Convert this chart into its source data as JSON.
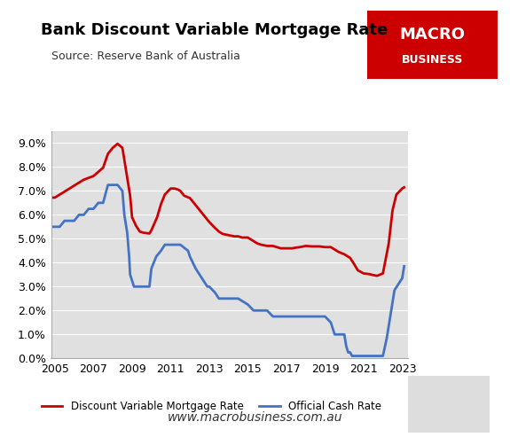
{
  "title": "Bank Discount Variable Mortgage Rate",
  "source": "Source: Reserve Bank of Australia",
  "website": "www.macrobusiness.com.au",
  "outer_background": "#ffffff",
  "plot_bg": "#e0e0e0",
  "red_color": "#cc0000",
  "blue_color": "#4472c4",
  "logo_bg": "#cc0000",
  "logo_text1": "MACRO",
  "logo_text2": "BUSINESS",
  "ylim": [
    0.0,
    0.095
  ],
  "yticks": [
    0.0,
    0.01,
    0.02,
    0.03,
    0.04,
    0.05,
    0.06,
    0.07,
    0.08,
    0.09
  ],
  "ytick_labels": [
    "0.0%",
    "1.0%",
    "2.0%",
    "3.0%",
    "4.0%",
    "5.0%",
    "6.0%",
    "7.0%",
    "8.0%",
    "9.0%"
  ],
  "xlim": [
    2004.8,
    2023.3
  ],
  "xtick_labels": [
    "2005",
    "2007",
    "2009",
    "2011",
    "2013",
    "2015",
    "2017",
    "2019",
    "2021",
    "2023"
  ],
  "xtick_values": [
    2005,
    2007,
    2009,
    2011,
    2013,
    2015,
    2017,
    2019,
    2021,
    2023
  ],
  "legend_label_red": "Discount Variable Mortgage Rate",
  "legend_label_blue": "Official Cash Rate",
  "mortgage_rate": {
    "dates": [
      2004.9,
      2005.0,
      2005.5,
      2006.0,
      2006.5,
      2007.0,
      2007.5,
      2007.75,
      2008.0,
      2008.25,
      2008.5,
      2008.6,
      2008.75,
      2008.9,
      2009.0,
      2009.2,
      2009.4,
      2009.6,
      2009.9,
      2010.0,
      2010.3,
      2010.5,
      2010.7,
      2011.0,
      2011.2,
      2011.4,
      2011.5,
      2011.7,
      2012.0,
      2012.3,
      2012.5,
      2012.7,
      2012.9,
      2013.0,
      2013.3,
      2013.5,
      2013.7,
      2014.0,
      2014.3,
      2014.5,
      2014.7,
      2015.0,
      2015.3,
      2015.5,
      2015.7,
      2016.0,
      2016.3,
      2016.5,
      2016.7,
      2017.0,
      2017.3,
      2017.5,
      2017.7,
      2018.0,
      2018.3,
      2018.5,
      2018.7,
      2019.0,
      2019.3,
      2019.5,
      2019.7,
      2020.0,
      2020.3,
      2020.5,
      2020.7,
      2021.0,
      2021.3,
      2021.5,
      2021.7,
      2022.0,
      2022.3,
      2022.5,
      2022.7,
      2023.0,
      2023.1
    ],
    "values": [
      0.0672,
      0.0672,
      0.0697,
      0.0722,
      0.0747,
      0.0762,
      0.0797,
      0.0855,
      0.088,
      0.0897,
      0.088,
      0.083,
      0.0755,
      0.068,
      0.059,
      0.0555,
      0.053,
      0.0525,
      0.0522,
      0.0535,
      0.059,
      0.0645,
      0.0685,
      0.071,
      0.071,
      0.0705,
      0.07,
      0.068,
      0.067,
      0.064,
      0.062,
      0.06,
      0.058,
      0.057,
      0.0545,
      0.053,
      0.052,
      0.0515,
      0.051,
      0.051,
      0.0505,
      0.0505,
      0.049,
      0.048,
      0.0475,
      0.047,
      0.047,
      0.0465,
      0.046,
      0.046,
      0.046,
      0.0463,
      0.0465,
      0.047,
      0.0468,
      0.0468,
      0.0468,
      0.0465,
      0.0465,
      0.0455,
      0.0445,
      0.0435,
      0.042,
      0.0395,
      0.0368,
      0.0355,
      0.0352,
      0.0348,
      0.0345,
      0.0355,
      0.048,
      0.062,
      0.0685,
      0.071,
      0.0715
    ]
  },
  "cash_rate": {
    "dates": [
      2004.9,
      2005.0,
      2005.25,
      2005.5,
      2005.75,
      2006.0,
      2006.25,
      2006.5,
      2006.75,
      2007.0,
      2007.25,
      2007.5,
      2007.75,
      2008.0,
      2008.1,
      2008.25,
      2008.5,
      2008.6,
      2008.75,
      2008.85,
      2008.9,
      2009.0,
      2009.1,
      2009.2,
      2009.4,
      2009.6,
      2009.9,
      2010.0,
      2010.25,
      2010.5,
      2010.7,
      2010.9,
      2011.0,
      2011.5,
      2011.9,
      2012.0,
      2012.3,
      2012.5,
      2012.7,
      2012.9,
      2013.0,
      2013.3,
      2013.5,
      2013.7,
      2014.0,
      2014.5,
      2015.0,
      2015.3,
      2015.5,
      2015.7,
      2016.0,
      2016.3,
      2016.5,
      2016.7,
      2017.0,
      2017.5,
      2018.0,
      2018.5,
      2019.0,
      2019.3,
      2019.5,
      2019.7,
      2020.0,
      2020.1,
      2020.2,
      2020.3,
      2020.4,
      2020.5,
      2021.0,
      2021.5,
      2021.9,
      2022.0,
      2022.2,
      2022.4,
      2022.6,
      2022.8,
      2023.0,
      2023.1
    ],
    "values": [
      0.055,
      0.055,
      0.055,
      0.0575,
      0.0575,
      0.0575,
      0.06,
      0.06,
      0.0625,
      0.0625,
      0.065,
      0.065,
      0.0725,
      0.0725,
      0.0725,
      0.0725,
      0.07,
      0.06,
      0.0525,
      0.0425,
      0.035,
      0.0325,
      0.03,
      0.03,
      0.03,
      0.03,
      0.03,
      0.0375,
      0.0425,
      0.045,
      0.0475,
      0.0475,
      0.0475,
      0.0475,
      0.045,
      0.0425,
      0.0375,
      0.035,
      0.0325,
      0.03,
      0.03,
      0.0275,
      0.025,
      0.025,
      0.025,
      0.025,
      0.0225,
      0.02,
      0.02,
      0.02,
      0.02,
      0.0175,
      0.0175,
      0.0175,
      0.0175,
      0.0175,
      0.0175,
      0.0175,
      0.0175,
      0.015,
      0.01,
      0.01,
      0.01,
      0.005,
      0.0025,
      0.0025,
      0.001,
      0.001,
      0.001,
      0.001,
      0.001,
      0.001,
      0.0085,
      0.0185,
      0.0285,
      0.031,
      0.0335,
      0.0385
    ]
  }
}
